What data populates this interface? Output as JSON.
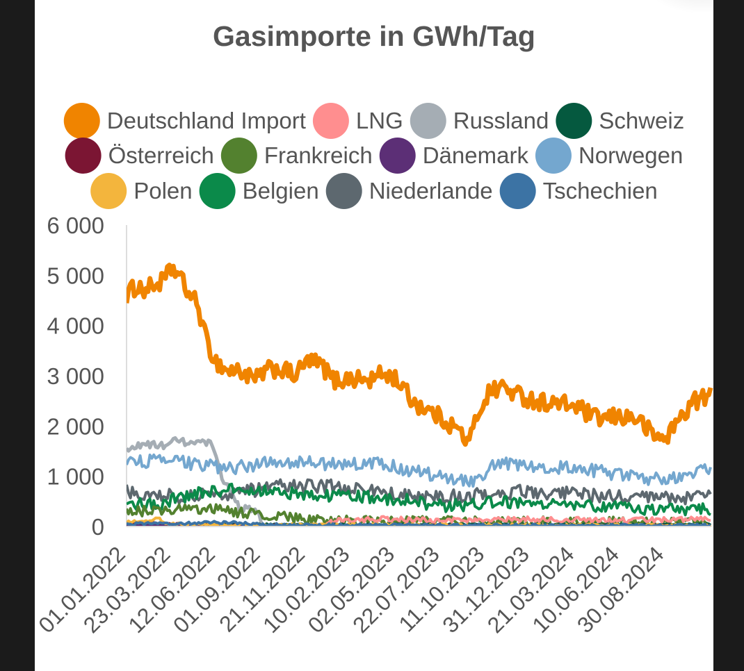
{
  "chart_data": {
    "type": "area",
    "title": "Gasimporte in GWh/Tag",
    "xlabel": "",
    "ylabel": "",
    "ylim": [
      0,
      6000
    ],
    "yticks": [
      "0",
      "1 000",
      "2 000",
      "3 000",
      "4 000",
      "5 000",
      "6 000"
    ],
    "ytick_values": [
      0,
      1000,
      2000,
      3000,
      4000,
      5000,
      6000
    ],
    "xticks": [
      "01.01.2022",
      "23.03.2022",
      "12.06.2022",
      "01.09.2022",
      "21.11.2022",
      "10.02.2023",
      "02.05.2023",
      "22.07.2023",
      "11.10.2023",
      "31.12.2023",
      "21.03.2024",
      "10.06.2024",
      "30.08.2024"
    ],
    "x_start": "01.01.2022",
    "x_end": "20.11.2024",
    "grid": false,
    "legend_position": "top",
    "series": [
      {
        "name": "Deutschland Import",
        "color": "#f08400",
        "noise": 360,
        "knots": [
          [
            "01.01.2022",
            4600
          ],
          [
            "10.01.2022",
            4700
          ],
          [
            "20.01.2022",
            4800
          ],
          [
            "01.02.2022",
            4700
          ],
          [
            "20.02.2022",
            4800
          ],
          [
            "10.03.2022",
            4900
          ],
          [
            "25.03.2022",
            5150
          ],
          [
            "05.04.2022",
            5000
          ],
          [
            "20.04.2022",
            4700
          ],
          [
            "10.05.2022",
            4400
          ],
          [
            "25.05.2022",
            3700
          ],
          [
            "10.06.2022",
            3300
          ],
          [
            "01.07.2022",
            3100
          ],
          [
            "25.07.2022",
            3100
          ],
          [
            "20.08.2022",
            2900
          ],
          [
            "10.09.2022",
            3100
          ],
          [
            "01.10.2022",
            3150
          ],
          [
            "01.11.2022",
            3000
          ],
          [
            "25.11.2022",
            3300
          ],
          [
            "20.12.2022",
            3200
          ],
          [
            "10.01.2023",
            2900
          ],
          [
            "10.02.2023",
            2950
          ],
          [
            "15.03.2023",
            2900
          ],
          [
            "10.04.2023",
            3050
          ],
          [
            "02.05.2023",
            2950
          ],
          [
            "01.06.2023",
            2500
          ],
          [
            "01.07.2023",
            2300
          ],
          [
            "01.08.2023",
            2100
          ],
          [
            "25.08.2023",
            1900
          ],
          [
            "11.09.2023",
            1650
          ],
          [
            "25.09.2023",
            2200
          ],
          [
            "15.10.2023",
            2650
          ],
          [
            "10.11.2023",
            2800
          ],
          [
            "01.12.2023",
            2650
          ],
          [
            "10.01.2024",
            2500
          ],
          [
            "10.02.2024",
            2450
          ],
          [
            "21.03.2024",
            2400
          ],
          [
            "25.04.2024",
            2150
          ],
          [
            "20.05.2024",
            2150
          ],
          [
            "10.06.2024",
            2200
          ],
          [
            "10.07.2024",
            2150
          ],
          [
            "10.08.2024",
            1800
          ],
          [
            "30.08.2024",
            1750
          ],
          [
            "25.09.2024",
            2150
          ],
          [
            "20.10.2024",
            2500
          ],
          [
            "20.11.2024",
            2600
          ]
        ]
      },
      {
        "name": "Russland",
        "color": "#a5adb4",
        "noise": 150,
        "knots": [
          [
            "01.01.2022",
            1500
          ],
          [
            "01.02.2022",
            1650
          ],
          [
            "01.03.2022",
            1600
          ],
          [
            "01.04.2022",
            1700
          ],
          [
            "01.05.2022",
            1650
          ],
          [
            "01.06.2022",
            1650
          ],
          [
            "15.06.2022",
            1250
          ],
          [
            "25.06.2022",
            900
          ],
          [
            "15.07.2022",
            600
          ],
          [
            "25.07.2022",
            350
          ],
          [
            "20.08.2022",
            350
          ],
          [
            "31.08.2022",
            200
          ],
          [
            "03.09.2022",
            0
          ],
          [
            "20.11.2024",
            0
          ]
        ]
      },
      {
        "name": "Norwegen",
        "color": "#74a7cf",
        "noise": 260,
        "knots": [
          [
            "01.01.2022",
            1300
          ],
          [
            "01.04.2022",
            1300
          ],
          [
            "01.07.2022",
            1150
          ],
          [
            "01.10.2022",
            1300
          ],
          [
            "01.01.2023",
            1250
          ],
          [
            "01.04.2023",
            1250
          ],
          [
            "01.07.2023",
            1050
          ],
          [
            "15.09.2023",
            900
          ],
          [
            "01.11.2023",
            1250
          ],
          [
            "01.02.2024",
            1200
          ],
          [
            "01.05.2024",
            1100
          ],
          [
            "01.08.2024",
            950
          ],
          [
            "01.10.2024",
            1000
          ],
          [
            "20.11.2024",
            1150
          ]
        ]
      },
      {
        "name": "Niederlande",
        "color": "#5d686f",
        "noise": 280,
        "knots": [
          [
            "01.01.2022",
            700
          ],
          [
            "01.04.2022",
            600
          ],
          [
            "01.07.2022",
            650
          ],
          [
            "01.10.2022",
            800
          ],
          [
            "01.01.2023",
            800
          ],
          [
            "01.04.2023",
            700
          ],
          [
            "01.07.2023",
            550
          ],
          [
            "01.10.2023",
            650
          ],
          [
            "01.01.2024",
            700
          ],
          [
            "01.04.2024",
            650
          ],
          [
            "01.07.2024",
            550
          ],
          [
            "20.11.2024",
            600
          ]
        ]
      },
      {
        "name": "Belgien",
        "color": "#0b8a4a",
        "noise": 250,
        "knots": [
          [
            "01.01.2022",
            450
          ],
          [
            "01.03.2022",
            450
          ],
          [
            "01.05.2022",
            650
          ],
          [
            "01.08.2022",
            750
          ],
          [
            "01.11.2022",
            650
          ],
          [
            "01.02.2023",
            600
          ],
          [
            "01.05.2023",
            550
          ],
          [
            "01.08.2023",
            400
          ],
          [
            "01.11.2023",
            500
          ],
          [
            "01.02.2024",
            450
          ],
          [
            "01.05.2024",
            400
          ],
          [
            "01.08.2024",
            350
          ],
          [
            "20.11.2024",
            350
          ]
        ]
      },
      {
        "name": "Frankreich",
        "color": "#53812f",
        "noise": 200,
        "knots": [
          [
            "01.01.2022",
            300
          ],
          [
            "01.06.2022",
            350
          ],
          [
            "01.10.2022",
            200
          ],
          [
            "01.01.2023",
            120
          ],
          [
            "20.11.2024",
            80
          ]
        ]
      },
      {
        "name": "LNG",
        "color": "#ff8e8f",
        "noise": 110,
        "knots": [
          [
            "01.01.2022",
            0
          ],
          [
            "10.12.2022",
            0
          ],
          [
            "25.12.2022",
            60
          ],
          [
            "20.01.2023",
            120
          ],
          [
            "01.04.2023",
            150
          ],
          [
            "01.07.2023",
            120
          ],
          [
            "01.10.2023",
            120
          ],
          [
            "01.01.2024",
            150
          ],
          [
            "01.04.2024",
            130
          ],
          [
            "01.07.2024",
            120
          ],
          [
            "20.11.2024",
            150
          ]
        ]
      },
      {
        "name": "Schweiz",
        "color": "#05593f",
        "noise": 30,
        "knots": [
          [
            "01.01.2022",
            40
          ],
          [
            "20.11.2024",
            40
          ]
        ]
      },
      {
        "name": "Österreich",
        "color": "#7b1533",
        "noise": 40,
        "knots": [
          [
            "01.01.2022",
            80
          ],
          [
            "01.06.2022",
            30
          ],
          [
            "01.01.2023",
            10
          ],
          [
            "20.11.2024",
            10
          ]
        ]
      },
      {
        "name": "Dänemark",
        "color": "#5c2f76",
        "noise": 20,
        "knots": [
          [
            "01.01.2022",
            20
          ],
          [
            "20.11.2024",
            20
          ]
        ]
      },
      {
        "name": "Polen",
        "color": "#f3b53d",
        "noise": 60,
        "knots": [
          [
            "01.01.2022",
            80
          ],
          [
            "01.03.2022",
            150
          ],
          [
            "15.03.2022",
            60
          ],
          [
            "01.05.2022",
            30
          ],
          [
            "20.11.2024",
            20
          ]
        ]
      },
      {
        "name": "Tschechien",
        "color": "#3c73a4",
        "noise": 60,
        "knots": [
          [
            "01.01.2022",
            50
          ],
          [
            "01.07.2022",
            80
          ],
          [
            "01.10.2022",
            30
          ],
          [
            "20.11.2024",
            20
          ]
        ]
      }
    ]
  }
}
